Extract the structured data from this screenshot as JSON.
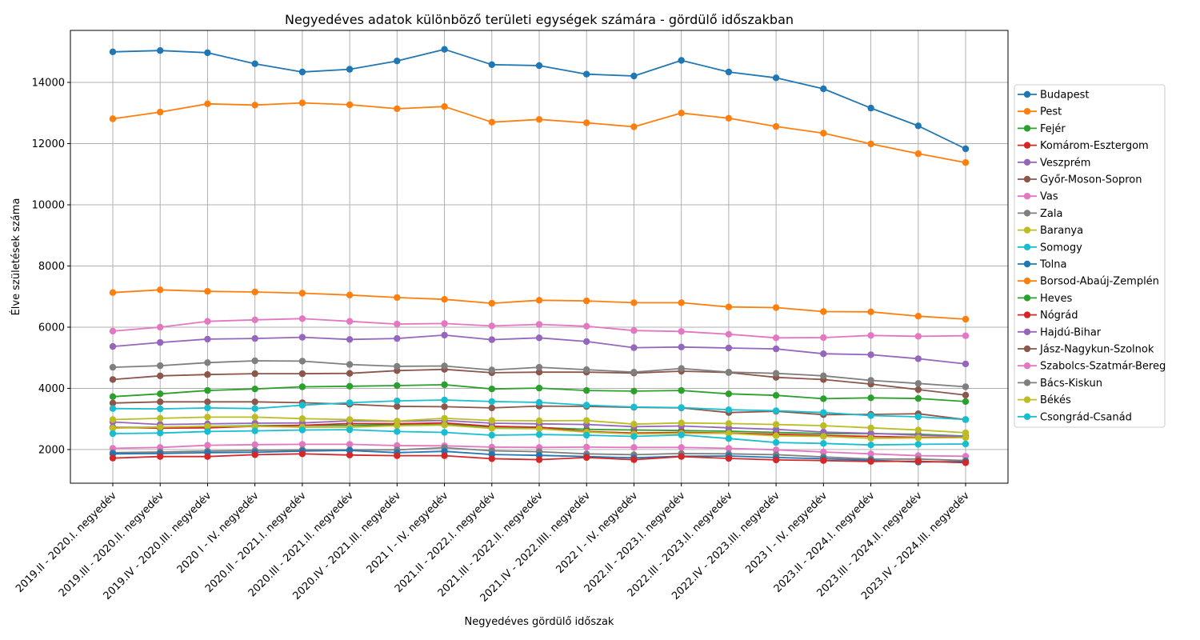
{
  "chart_data": {
    "type": "line",
    "title": "Negyedéves adatok különböző területi egységek számára - gördülő időszakban",
    "xlabel": "Negyedéves gördülő időszak",
    "ylabel": "Élve születések száma",
    "ylim": [
      900,
      15700
    ],
    "yticks": [
      2000,
      4000,
      6000,
      8000,
      10000,
      12000,
      14000
    ],
    "ytick_labels": [
      "2000",
      "4000",
      "6000",
      "8000",
      "10000",
      "12000",
      "14000"
    ],
    "grid": true,
    "legend_position": "right",
    "x": [
      "2019.II - 2020.I. negyedév",
      "2019.III - 2020.II. negyedév",
      "2019.IV - 2020.III. negyedév",
      "2020 I - IV. negyedév",
      "2020.II - 2021.I. negyedév",
      "2020.III - 2021.II. negyedév",
      "2020.IV - 2021.III. negyedév",
      "2021 I - IV. negyedév",
      "2021.II - 2022.I. negyedév",
      "2021.III - 2022.II. negyedév",
      "2021.IV - 2022.IIII. negyedév",
      "2022 I - IV. negyedév",
      "2022.II - 2023.I. negyedév",
      "2022.III - 2023.II. negyedév",
      "2022.IV - 2023.III. negyedév",
      "2023 I - IV. negyedév",
      "2023.II - 2024.I. negyedév",
      "2023.III - 2024.II. negyedév",
      "2023.IV - 2024.III. negyedév"
    ],
    "series": [
      {
        "name": "Budapest",
        "color": "#1f77b4",
        "values": [
          15000,
          15040,
          14970,
          14610,
          14340,
          14430,
          14700,
          15080,
          14580,
          14550,
          14270,
          14210,
          14720,
          14340,
          14150,
          13790,
          13160,
          12580,
          11830
        ]
      },
      {
        "name": "Pest",
        "color": "#ff7f0e",
        "values": [
          12810,
          13030,
          13300,
          13260,
          13330,
          13270,
          13140,
          13210,
          12700,
          12790,
          12680,
          12550,
          13000,
          12830,
          12560,
          12340,
          11990,
          11670,
          11380
        ]
      },
      {
        "name": "Fejér",
        "color": "#2ca02c",
        "values": [
          2720,
          2730,
          2760,
          2780,
          2790,
          2790,
          2800,
          2820,
          2740,
          2720,
          2660,
          2640,
          2620,
          2600,
          2560,
          2520,
          2520,
          2500,
          2440
        ]
      },
      {
        "name": "Komárom-Esztergom",
        "color": "#d62728",
        "values": [
          2720,
          2700,
          2710,
          2760,
          2790,
          2850,
          2840,
          2870,
          2760,
          2730,
          2590,
          2540,
          2560,
          2540,
          2500,
          2460,
          2430,
          2400,
          2400
        ]
      },
      {
        "name": "Veszprém",
        "color": "#9467bd",
        "values": [
          2900,
          2820,
          2840,
          2860,
          2870,
          2940,
          2920,
          2950,
          2860,
          2840,
          2820,
          2750,
          2770,
          2710,
          2660,
          2570,
          2530,
          2470,
          2430
        ]
      },
      {
        "name": "Győr-Moson-Sopron",
        "color": "#8c564b",
        "values": [
          3520,
          3560,
          3560,
          3560,
          3530,
          3480,
          3410,
          3400,
          3360,
          3420,
          3410,
          3380,
          3360,
          3210,
          3250,
          3140,
          3150,
          3170,
          2980
        ]
      },
      {
        "name": "Vas",
        "color": "#e377c2",
        "values": [
          2040,
          2070,
          2140,
          2160,
          2170,
          2170,
          2130,
          2120,
          2080,
          2070,
          2080,
          2070,
          2070,
          2040,
          1990,
          1920,
          1860,
          1800,
          1780
        ]
      },
      {
        "name": "Zala",
        "color": "#7f7f7f",
        "values": [
          1900,
          1920,
          1950,
          1970,
          1990,
          1990,
          1990,
          2060,
          1960,
          1930,
          1860,
          1830,
          1870,
          1860,
          1830,
          1760,
          1690,
          1690,
          1640
        ]
      },
      {
        "name": "Baranya",
        "color": "#bcbd22",
        "values": [
          2700,
          2730,
          2760,
          2760,
          2730,
          2730,
          2780,
          2800,
          2690,
          2680,
          2570,
          2510,
          2530,
          2530,
          2450,
          2430,
          2370,
          2380,
          2390
        ]
      },
      {
        "name": "Somogy",
        "color": "#17becf",
        "values": [
          2520,
          2540,
          2590,
          2610,
          2640,
          2650,
          2590,
          2560,
          2470,
          2490,
          2470,
          2430,
          2480,
          2360,
          2230,
          2200,
          2150,
          2170,
          2180
        ]
      },
      {
        "name": "Tolna",
        "color": "#1f77b4",
        "values": [
          1860,
          1870,
          1900,
          1910,
          1950,
          1970,
          1900,
          1940,
          1840,
          1810,
          1770,
          1730,
          1780,
          1790,
          1740,
          1700,
          1650,
          1590,
          1610
        ]
      },
      {
        "name": "Borsod-Abaúj-Zemplén",
        "color": "#ff7f0e",
        "values": [
          7130,
          7220,
          7170,
          7150,
          7110,
          7050,
          6970,
          6910,
          6780,
          6880,
          6860,
          6800,
          6800,
          6660,
          6640,
          6510,
          6500,
          6360,
          6260
        ]
      },
      {
        "name": "Heves",
        "color": "#2ca02c",
        "values": [
          3730,
          3820,
          3930,
          3980,
          4050,
          4070,
          4090,
          4120,
          3980,
          4010,
          3930,
          3910,
          3930,
          3820,
          3770,
          3660,
          3690,
          3670,
          3570
        ]
      },
      {
        "name": "Nógrád",
        "color": "#d62728",
        "values": [
          1720,
          1770,
          1770,
          1830,
          1860,
          1820,
          1800,
          1800,
          1700,
          1670,
          1740,
          1670,
          1770,
          1710,
          1660,
          1640,
          1610,
          1620,
          1570
        ]
      },
      {
        "name": "Hajdú-Bihar",
        "color": "#9467bd",
        "values": [
          5370,
          5500,
          5610,
          5630,
          5670,
          5600,
          5630,
          5740,
          5590,
          5650,
          5530,
          5330,
          5350,
          5320,
          5290,
          5130,
          5100,
          4970,
          4800
        ]
      },
      {
        "name": "Jász-Nagykun-Szolnok",
        "color": "#8c564b",
        "values": [
          4290,
          4410,
          4450,
          4480,
          4480,
          4490,
          4580,
          4620,
          4510,
          4530,
          4530,
          4500,
          4560,
          4520,
          4360,
          4290,
          4140,
          3960,
          3780
        ]
      },
      {
        "name": "Szabolcs-Szatmár-Bereg",
        "color": "#e377c2",
        "values": [
          5870,
          6000,
          6190,
          6240,
          6280,
          6190,
          6100,
          6120,
          6040,
          6090,
          6030,
          5890,
          5860,
          5770,
          5650,
          5660,
          5730,
          5700,
          5720
        ]
      },
      {
        "name": "Bács-Kiskun",
        "color": "#7f7f7f",
        "values": [
          4690,
          4740,
          4840,
          4900,
          4890,
          4780,
          4720,
          4730,
          4600,
          4690,
          4610,
          4530,
          4650,
          4530,
          4490,
          4410,
          4260,
          4160,
          4050
        ]
      },
      {
        "name": "Békés",
        "color": "#bcbd22",
        "values": [
          2980,
          3020,
          3060,
          3060,
          3010,
          2980,
          2930,
          3020,
          2950,
          2940,
          2950,
          2830,
          2870,
          2850,
          2820,
          2780,
          2710,
          2640,
          2550
        ]
      },
      {
        "name": "Csongrád-Csanád",
        "color": "#17becf",
        "values": [
          3340,
          3330,
          3360,
          3340,
          3450,
          3530,
          3590,
          3620,
          3570,
          3540,
          3450,
          3390,
          3370,
          3300,
          3270,
          3210,
          3110,
          3070,
          2980
        ]
      }
    ]
  }
}
